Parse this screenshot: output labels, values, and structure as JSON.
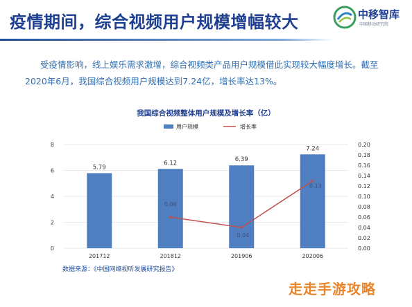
{
  "header": {
    "title": "疫情期间，综合视频用户规模增幅较大",
    "logo_name": "中移智库",
    "logo_sub": "中国移动研究院"
  },
  "intro": "受疫情影响，线上娱乐需求激增，综合视频类产品用户规模借此实现较大幅度增长。截至2020年6月，我国综合视频用户规模达到7.24亿，增长率达13%。",
  "source": "数据来源：《中国网络视听发展研究报告》",
  "watermark": "走走手游攻略",
  "chart_data": {
    "type": "bar",
    "title": "我国综合视频整体用户规模及增长率（亿）",
    "categories": [
      "201712",
      "201812",
      "201906",
      "202006"
    ],
    "series": [
      {
        "name": "用户规模",
        "kind": "bar",
        "axis": "left",
        "values": [
          5.79,
          6.12,
          6.39,
          7.24
        ],
        "labels": [
          "5.79",
          "6.12",
          "6.39",
          "7.24"
        ]
      },
      {
        "name": "增长率",
        "kind": "line",
        "axis": "right",
        "values": [
          null,
          0.06,
          0.04,
          0.13
        ],
        "labels": [
          "",
          "0.06",
          "0.04",
          "0.13"
        ]
      }
    ],
    "ylim": [
      0,
      8
    ],
    "yticks": [
      "0",
      "2",
      "4",
      "6",
      "8"
    ],
    "y2lim": [
      0,
      0.2
    ],
    "y2ticks": [
      "0.00",
      "0.02",
      "0.04",
      "0.06",
      "0.08",
      "0.10",
      "0.12",
      "0.14",
      "0.16",
      "0.18",
      "0.20"
    ],
    "legend_position": "top-center",
    "grid": true,
    "colors": {
      "bar": "#4f7fc0",
      "line": "#c0504d",
      "text": "#1f3f91"
    }
  }
}
